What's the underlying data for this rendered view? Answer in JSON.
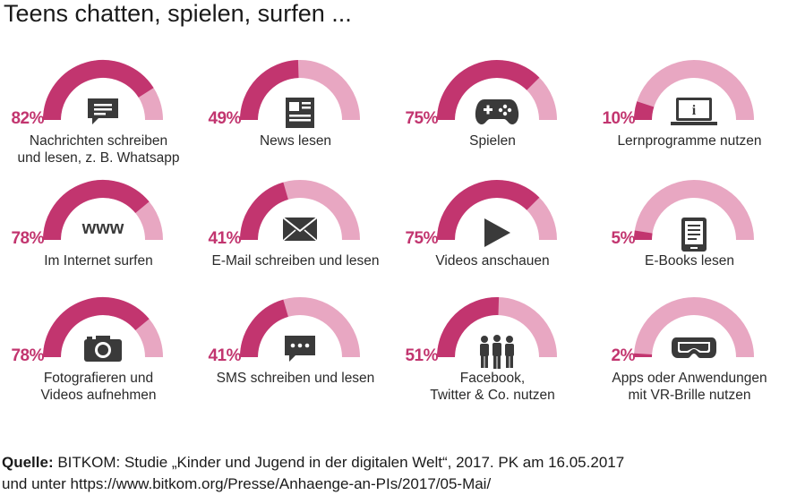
{
  "title": "Teens chatten, spielen, surfen ...",
  "colors": {
    "accent": "#c2356f",
    "track": "#e8a7c2",
    "icon": "#3a3a3a"
  },
  "chart_data": {
    "type": "gauge",
    "title": "Teens chatten, spielen, surfen ...",
    "items": [
      {
        "value": 82,
        "value_label": "82%",
        "label": "Nachrichten schreiben\nund lesen, z. B. Whatsapp",
        "icon": "chat-bubble-icon"
      },
      {
        "value": 49,
        "value_label": "49%",
        "label": "News lesen",
        "icon": "newspaper-icon"
      },
      {
        "value": 75,
        "value_label": "75%",
        "label": "Spielen",
        "icon": "gamepad-icon"
      },
      {
        "value": 10,
        "value_label": "10%",
        "label": "Lernprogramme nutzen",
        "icon": "laptop-info-icon"
      },
      {
        "value": 78,
        "value_label": "78%",
        "label": "Im Internet surfen",
        "icon": "www-icon",
        "icon_text": "www"
      },
      {
        "value": 41,
        "value_label": "41%",
        "label": "E-Mail schreiben und lesen",
        "icon": "envelope-icon"
      },
      {
        "value": 75,
        "value_label": "75%",
        "label": "Videos anschauen",
        "icon": "play-icon"
      },
      {
        "value": 5,
        "value_label": "5%",
        "label": "E-Books lesen",
        "icon": "ebook-reader-icon"
      },
      {
        "value": 78,
        "value_label": "78%",
        "label": "Fotografieren und\nVideos aufnehmen",
        "icon": "camera-icon"
      },
      {
        "value": 41,
        "value_label": "41%",
        "label": "SMS schreiben und lesen",
        "icon": "sms-bubble-icon"
      },
      {
        "value": 51,
        "value_label": "51%",
        "label": "Facebook,\nTwitter & Co. nutzen",
        "icon": "people-icon"
      },
      {
        "value": 2,
        "value_label": "2%",
        "label": "Apps oder Anwendungen\nmit VR-Brille nutzen",
        "icon": "vr-headset-icon"
      }
    ]
  },
  "source": {
    "label": "Quelle:",
    "line1": " BITKOM: Studie „Kinder und Jugend in der digitalen Welt“, 2017. PK am 16.05.2017",
    "line2": "und unter https://www.bitkom.org/Presse/Anhaenge-an-PIs/2017/05-Mai/"
  }
}
